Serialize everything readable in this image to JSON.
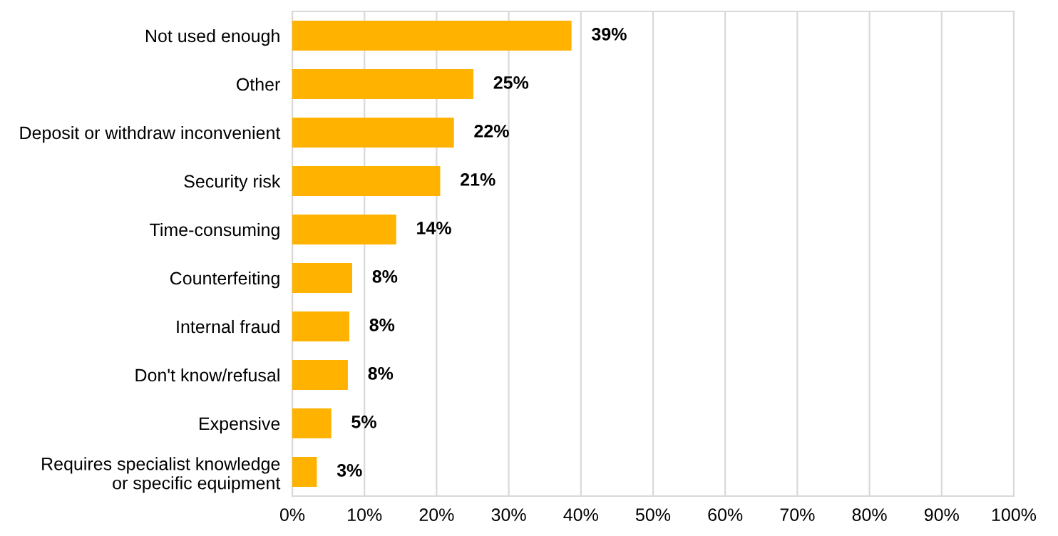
{
  "chart_data": {
    "type": "bar",
    "orientation": "horizontal",
    "categories": [
      "Not used enough",
      "Other",
      "Deposit or withdraw inconvenient",
      "Security risk",
      "Time-consuming",
      "Counterfeiting",
      "Internal fraud",
      "Don't know/refusal",
      "Expensive",
      "Requires specialist knowledge\nor specific equipment"
    ],
    "values": [
      38.7,
      25.1,
      22.4,
      20.5,
      14.4,
      8.3,
      7.9,
      7.7,
      5.4,
      3.4
    ],
    "value_labels": [
      "39%",
      "25%",
      "22%",
      "21%",
      "14%",
      "8%",
      "8%",
      "8%",
      "5%",
      "3%"
    ],
    "color": "#ffb300",
    "xlim": [
      0,
      100
    ],
    "xticks": [
      {
        "value": 0,
        "label": "0%"
      },
      {
        "value": 10,
        "label": "10%"
      },
      {
        "value": 20,
        "label": "20%"
      },
      {
        "value": 30,
        "label": "30%"
      },
      {
        "value": 40,
        "label": "40%"
      },
      {
        "value": 50,
        "label": "50%"
      },
      {
        "value": 60,
        "label": "60%"
      },
      {
        "value": 70,
        "label": "70%"
      },
      {
        "value": 80,
        "label": "80%"
      },
      {
        "value": 90,
        "label": "90%"
      },
      {
        "value": 100,
        "label": "100%"
      }
    ],
    "grid": "x",
    "legend": false
  }
}
